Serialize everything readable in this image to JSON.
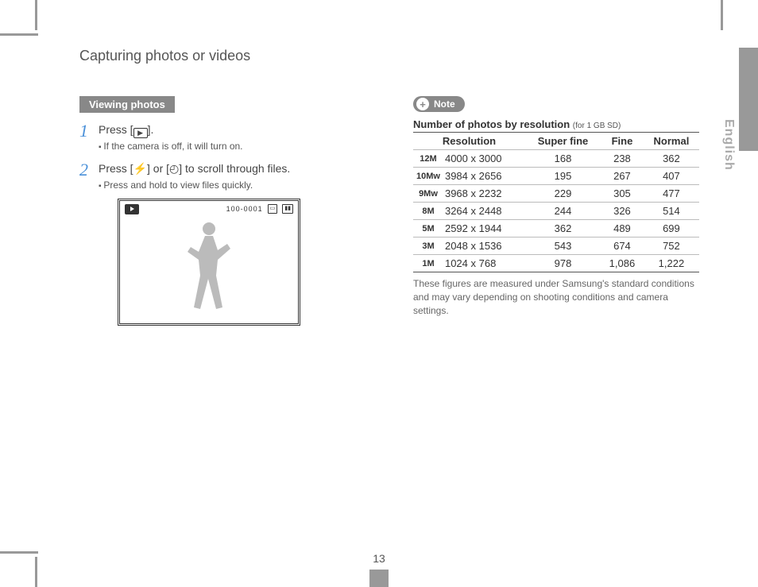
{
  "header": "Capturing photos or videos",
  "side_label": "English",
  "page_number": "13",
  "left": {
    "section": "Viewing photos",
    "step1_main": "Press [",
    "step1_end": "].",
    "step1_bullet": "If the camera is off, it will turn on.",
    "step2_a": "Press [",
    "step2_b": "] or [",
    "step2_c": "] to scroll through files.",
    "step2_bullet": "Press and hold to view files quickly.",
    "frame_counter": "100-0001",
    "flash_glyph": "⚡",
    "timer_glyph": "◴"
  },
  "right": {
    "note_label": "Note",
    "caption_main": "Number of photos by resolution",
    "caption_small": "(for 1 GB SD)",
    "columns": [
      "Resolution",
      "Super fine",
      "Fine",
      "Normal"
    ],
    "rows": [
      {
        "icon": "12M",
        "res": "4000 x 3000",
        "sf": "168",
        "f": "238",
        "n": "362"
      },
      {
        "icon": "10Mw",
        "res": "3984 x 2656",
        "sf": "195",
        "f": "267",
        "n": "407"
      },
      {
        "icon": "9Mw",
        "res": "3968 x 2232",
        "sf": "229",
        "f": "305",
        "n": "477"
      },
      {
        "icon": "8M",
        "res": "3264 x 2448",
        "sf": "244",
        "f": "326",
        "n": "514"
      },
      {
        "icon": "5M",
        "res": "2592 x 1944",
        "sf": "362",
        "f": "489",
        "n": "699"
      },
      {
        "icon": "3M",
        "res": "2048 x 1536",
        "sf": "543",
        "f": "674",
        "n": "752"
      },
      {
        "icon": "1M",
        "res": "1024 x 768",
        "sf": "978",
        "f": "1,086",
        "n": "1,222"
      }
    ],
    "footer": "These figures are measured under Samsung's standard conditions and may vary depending on shooting conditions and camera settings."
  }
}
